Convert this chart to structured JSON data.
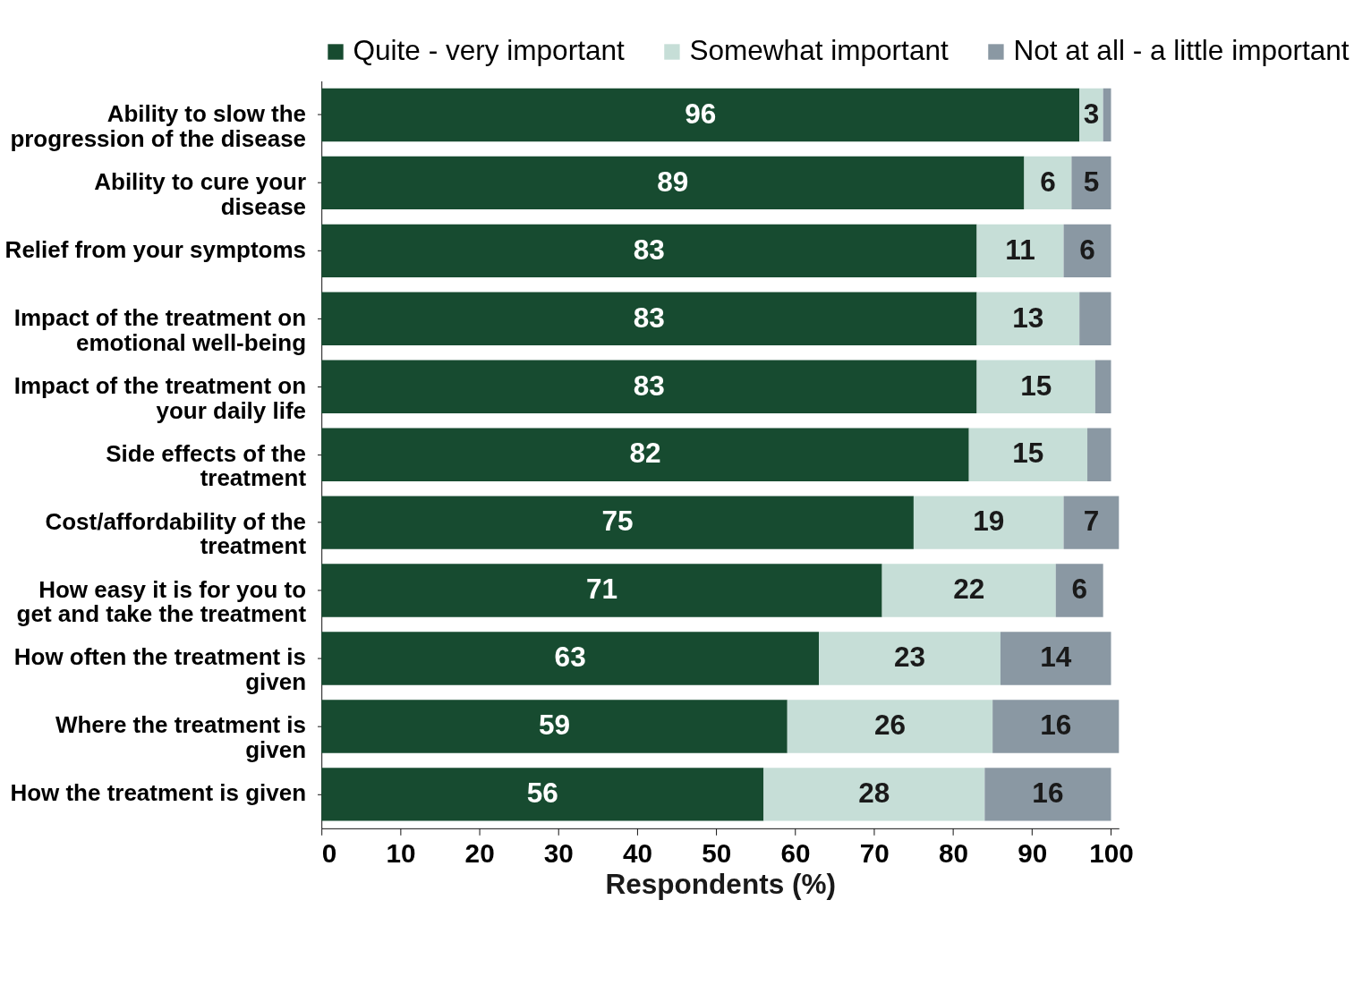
{
  "chart_data": {
    "type": "bar",
    "orientation": "horizontal",
    "stacked": true,
    "xlabel": "Respondents (%)",
    "categories": [
      "Ability to slow the progression of the disease",
      "Ability to cure your disease",
      "Relief from your symptoms",
      "Impact of the treatment on emotional well-being",
      "Impact of the treatment on your daily life",
      "Side effects of the treatment",
      "Cost/affordability of the treatment",
      "How easy it is for you to get and take the treatment",
      "How often the treatment is given",
      "Where the treatment is given",
      "How the treatment is given"
    ],
    "series": [
      {
        "name": "Quite - very important",
        "color": "#174b30",
        "values": [
          96,
          89,
          83,
          83,
          83,
          82,
          75,
          71,
          63,
          59,
          56
        ]
      },
      {
        "name": "Somewhat important",
        "color": "#c6ded7",
        "values": [
          3,
          6,
          11,
          13,
          15,
          15,
          19,
          22,
          23,
          26,
          28
        ]
      },
      {
        "name": "Not at all - a little important",
        "color": "#8a98a3",
        "values": [
          1,
          5,
          6,
          4,
          2,
          3,
          7,
          6,
          14,
          16,
          16
        ],
        "value_labels": [
          null,
          "5",
          "6",
          null,
          null,
          null,
          "7",
          "6",
          "14",
          "16",
          "16"
        ]
      }
    ],
    "data_labels": true,
    "xlim": [
      0,
      101
    ],
    "xticks": [
      0,
      10,
      20,
      30,
      40,
      50,
      60,
      70,
      80,
      90,
      100
    ],
    "grid": false,
    "legend": "top"
  }
}
